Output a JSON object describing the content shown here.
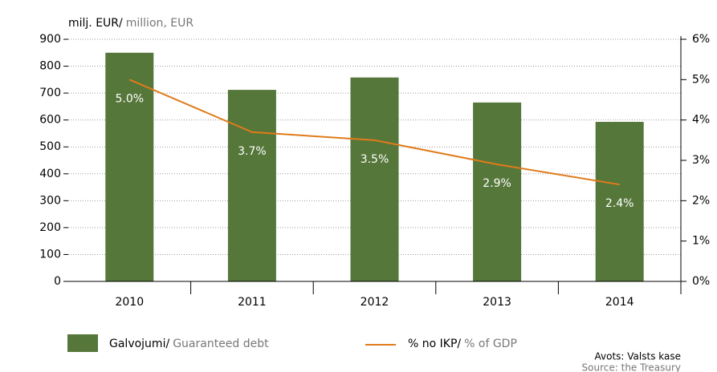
{
  "chart_data": {
    "type": "bar_line",
    "ylabel": "milj. EUR/",
    "ylabel_en": "million, EUR",
    "categories": [
      "2010",
      "2011",
      "2012",
      "2013",
      "2014"
    ],
    "series": [
      {
        "name": "Galvojumi/",
        "name_en": "Guaranteed debt",
        "color": "#56773a",
        "values": [
          850,
          712,
          758,
          665,
          593
        ]
      },
      {
        "name": "% no IKP/",
        "name_en": "% of GDP",
        "color": "#e07b1a",
        "axis": "y2",
        "values": [
          5.0,
          3.7,
          3.5,
          2.9,
          2.4
        ],
        "value_labels": [
          "5.0%",
          "3.7%",
          "3.5%",
          "2.9%",
          "2.4%"
        ]
      }
    ],
    "ylim": [
      0,
      900
    ],
    "yticks": [
      0,
      100,
      200,
      300,
      400,
      500,
      600,
      700,
      800,
      900
    ],
    "y2lim": [
      0,
      6
    ],
    "y2ticks": [
      {
        "value": 0,
        "label": "0%"
      },
      {
        "value": 1,
        "label": "1%"
      },
      {
        "value": 2,
        "label": "2%"
      },
      {
        "value": 3,
        "label": "3%"
      },
      {
        "value": 4,
        "label": "4%"
      },
      {
        "value": 5,
        "label": "5%"
      },
      {
        "value": 6,
        "label": "6%"
      }
    ],
    "grid": true,
    "source": [
      "Avots: Valsts kase",
      "Source: the Treasury"
    ]
  }
}
